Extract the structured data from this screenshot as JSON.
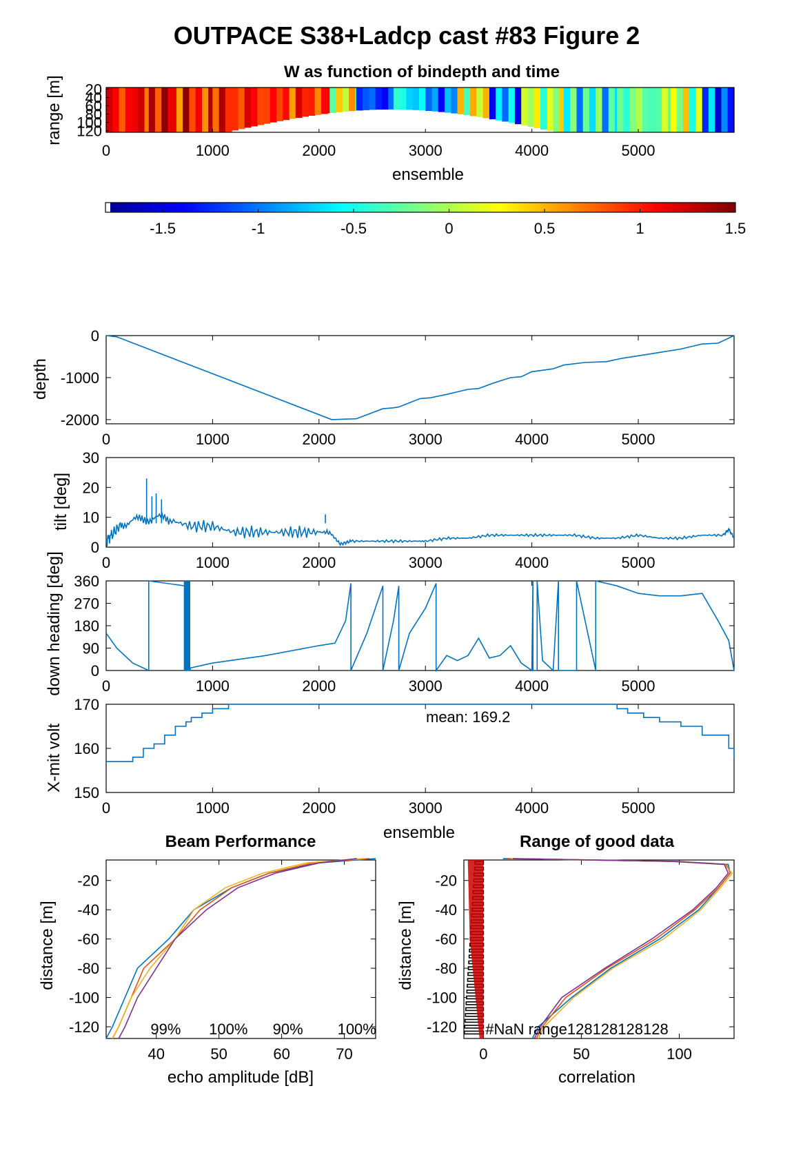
{
  "figure_title": "OUTPACE S38+Ladcp cast #83 Figure 2",
  "colors": {
    "line": "#0072bd",
    "beam1": "#0072bd",
    "beam2": "#d95319",
    "beam3": "#edb120",
    "beam4": "#7e2f8e",
    "nan_bars": "#cc0000",
    "colormap": "jet"
  },
  "chart_data": [
    {
      "id": "w_image",
      "type": "heatmap",
      "title": "W as function of bindepth and time",
      "xlabel": "ensemble",
      "ylabel": "range [m]",
      "xlim": [
        0,
        5900
      ],
      "xticks": [
        0,
        1000,
        2000,
        3000,
        4000,
        5000
      ],
      "ylim": [
        16,
        124
      ],
      "yticks": [
        20,
        40,
        60,
        80,
        100,
        120
      ],
      "ytick_labels": [
        "20",
        "40",
        "60",
        "80",
        "100",
        "120"
      ],
      "colorbar": {
        "clim": [
          -1.8,
          1.5
        ],
        "ticks": [
          -1.5,
          -1,
          -0.5,
          0,
          0.5,
          1,
          1.5
        ],
        "tick_labels": [
          "-1.5",
          "-1",
          "-0.5",
          "0",
          "0.5",
          "1",
          "1.5"
        ]
      },
      "segments": [
        {
          "x": [
            0,
            400
          ],
          "w": 1.05
        },
        {
          "x": [
            400,
            600
          ],
          "w": 1.2
        },
        {
          "x": [
            600,
            1000
          ],
          "w": 1.0
        },
        {
          "x": [
            1000,
            1600
          ],
          "w": 1.0
        },
        {
          "x": [
            1600,
            2100
          ],
          "w": 0.95
        },
        {
          "x": [
            2100,
            2350
          ],
          "w": 0.2
        },
        {
          "x": [
            2350,
            2700
          ],
          "w": -1.2
        },
        {
          "x": [
            2700,
            3000
          ],
          "w": -0.6
        },
        {
          "x": [
            3000,
            3300
          ],
          "w": -1.0
        },
        {
          "x": [
            3300,
            3600
          ],
          "w": 0.2
        },
        {
          "x": [
            3600,
            3900
          ],
          "w": -0.9
        },
        {
          "x": [
            3900,
            4300
          ],
          "w": 0.0
        },
        {
          "x": [
            4300,
            4800
          ],
          "w": -0.5
        },
        {
          "x": [
            4800,
            5300
          ],
          "w": -0.2
        },
        {
          "x": [
            5300,
            5600
          ],
          "w": 0.0
        },
        {
          "x": [
            5600,
            5900
          ],
          "w": -1.1
        }
      ]
    },
    {
      "id": "depth",
      "type": "line",
      "ylabel": "depth",
      "xlim": [
        0,
        5900
      ],
      "xticks": [
        0,
        1000,
        2000,
        3000,
        4000,
        5000
      ],
      "ylim": [
        -2100,
        0
      ],
      "yticks": [
        -2000,
        -1000,
        0
      ],
      "series": [
        {
          "x": [
            0,
            100,
            2120,
            2350,
            2600,
            2700,
            2750,
            2950,
            3050,
            3200,
            3400,
            3500,
            3650,
            3800,
            3900,
            4000,
            4200,
            4300,
            4500,
            4700,
            4850,
            5000,
            5200,
            5400,
            5600,
            5750,
            5900
          ],
          "y": [
            0,
            -30,
            -2000,
            -1980,
            -1740,
            -1720,
            -1700,
            -1500,
            -1480,
            -1400,
            -1280,
            -1260,
            -1120,
            -1000,
            -980,
            -860,
            -790,
            -700,
            -640,
            -620,
            -540,
            -480,
            -400,
            -320,
            -200,
            -180,
            0
          ]
        }
      ]
    },
    {
      "id": "tilt",
      "type": "line",
      "ylabel": "tilt [deg]",
      "xlim": [
        0,
        5900
      ],
      "xticks": [
        0,
        1000,
        2000,
        3000,
        4000,
        5000
      ],
      "ylim": [
        0,
        30
      ],
      "yticks": [
        0,
        10,
        20,
        30
      ],
      "series": [
        {
          "x": [
            0,
            50,
            150,
            300,
            450,
            600,
            800,
            1000,
            1200,
            1400,
            1600,
            1800,
            2000,
            2100,
            2200,
            2300,
            2500,
            2700,
            2900,
            3000,
            3200,
            3400,
            3600,
            3800,
            4000,
            4200,
            4400,
            4600,
            4800,
            5000,
            5200,
            5400,
            5600,
            5800,
            5850,
            5900
          ],
          "y": [
            2,
            4,
            8,
            9,
            10,
            9,
            7,
            7,
            5,
            5,
            5,
            5,
            5,
            5,
            1,
            2,
            2,
            2,
            2,
            2,
            3,
            3,
            4,
            4,
            4,
            4,
            4,
            3,
            3,
            4,
            3,
            3,
            4,
            4,
            6,
            3
          ],
          "spikes_x": [
            380,
            430,
            470,
            520,
            2060
          ],
          "spikes_y": [
            23,
            17,
            18,
            16,
            11
          ]
        }
      ]
    },
    {
      "id": "heading",
      "type": "line",
      "ylabel": "down heading [deg]",
      "xlim": [
        0,
        5900
      ],
      "xticks": [
        0,
        1000,
        2000,
        3000,
        4000,
        5000
      ],
      "ylim": [
        0,
        360
      ],
      "yticks": [
        0,
        90,
        180,
        270,
        360
      ],
      "series": [
        {
          "x": [
            0,
            100,
            250,
            400,
            400,
            740,
            740,
            790,
            790,
            1000,
            1500,
            2000,
            2150,
            2250,
            2300,
            2300,
            2450,
            2600,
            2600,
            2700,
            2750,
            2750,
            2850,
            3000,
            3100,
            3100,
            3200,
            3300,
            3400,
            3500,
            3600,
            3700,
            3800,
            3900,
            4000,
            4010,
            4010,
            4050,
            4050,
            4100,
            4200,
            4250,
            4250,
            4420,
            4420,
            4600,
            4600,
            4800,
            5000,
            5200,
            5400,
            5600,
            5750,
            5850,
            5900
          ],
          "y": [
            150,
            90,
            30,
            0,
            360,
            340,
            0,
            0,
            10,
            30,
            60,
            100,
            110,
            200,
            350,
            0,
            150,
            340,
            0,
            200,
            340,
            0,
            150,
            250,
            350,
            0,
            60,
            40,
            60,
            130,
            50,
            60,
            100,
            30,
            0,
            360,
            0,
            0,
            360,
            40,
            0,
            360,
            0,
            0,
            360,
            0,
            360,
            340,
            310,
            300,
            300,
            310,
            200,
            120,
            0
          ]
        }
      ]
    },
    {
      "id": "xmit",
      "type": "line",
      "ylabel": "X-mit volt",
      "xlabel": "ensemble",
      "xlim": [
        0,
        5900
      ],
      "xticks": [
        0,
        1000,
        2000,
        3000,
        4000,
        5000
      ],
      "ylim": [
        150,
        170
      ],
      "yticks": [
        150,
        160,
        170
      ],
      "annotation": "mean: 169.2",
      "series": [
        {
          "x": [
            0,
            100,
            250,
            350,
            450,
            550,
            650,
            750,
            800,
            900,
            1000,
            1150,
            1200,
            4600,
            4800,
            4900,
            5050,
            5200,
            5400,
            5600,
            5850,
            5900
          ],
          "y": [
            157,
            157,
            158,
            160,
            161,
            163,
            165,
            166,
            167,
            168,
            169,
            170,
            170,
            170,
            169,
            168,
            167,
            166,
            165,
            163,
            160,
            158
          ]
        }
      ]
    },
    {
      "id": "beam",
      "type": "line",
      "title": "Beam Performance",
      "xlabel": "echo amplitude [dB]",
      "ylabel": "distance [m]",
      "xlim": [
        32,
        75
      ],
      "xticks": [
        40,
        50,
        60,
        70
      ],
      "ylim": [
        -128,
        -6
      ],
      "yticks": [
        -120,
        -100,
        -80,
        -60,
        -40,
        -20
      ],
      "percent_labels": [
        {
          "text": "99%",
          "x": 41.5
        },
        {
          "text": "100%",
          "x": 51.5
        },
        {
          "text": "90%",
          "x": 61
        },
        {
          "text": "100%",
          "x": 72
        }
      ],
      "series": [
        {
          "name": "",
          "y": [
            -5,
            -8,
            -15,
            -25,
            -40,
            -60,
            -80,
            -100,
            -120,
            -128
          ],
          "x": [
            75,
            66,
            58,
            52,
            46,
            42,
            37,
            35,
            33,
            32
          ]
        },
        {
          "name": "",
          "y": [
            -5,
            -8,
            -15,
            -25,
            -40,
            -60,
            -80,
            -100,
            -120,
            -128
          ],
          "x": [
            74,
            65,
            58,
            52,
            47,
            43,
            38,
            36,
            34,
            33
          ]
        },
        {
          "name": "",
          "y": [
            -5,
            -8,
            -15,
            -25,
            -40,
            -60,
            -80,
            -100,
            -120,
            -128
          ],
          "x": [
            73,
            64,
            57,
            51,
            46,
            43,
            39,
            36,
            34,
            33
          ]
        },
        {
          "name": "",
          "y": [
            -5,
            -8,
            -15,
            -25,
            -40,
            -60,
            -80,
            -100,
            -120,
            -128
          ],
          "x": [
            72,
            66,
            59,
            53,
            48,
            43,
            40,
            37,
            35,
            34
          ]
        }
      ]
    },
    {
      "id": "range",
      "type": "line",
      "title": "Range of good data",
      "xlabel": "correlation",
      "ylabel": "distance [m]",
      "xlim": [
        -10,
        128
      ],
      "xticks": [
        0,
        50,
        100
      ],
      "ylim": [
        -128,
        -6
      ],
      "yticks": [
        -120,
        -100,
        -80,
        -60,
        -40,
        -20
      ],
      "annotation": "#NaN range128128128128",
      "series": [
        {
          "name": "",
          "y": [
            -5,
            -7,
            -9,
            -15,
            -25,
            -40,
            -60,
            -80,
            -100,
            -120,
            -128
          ],
          "x": [
            10,
            100,
            125,
            126,
            120,
            110,
            90,
            65,
            45,
            28,
            25
          ]
        },
        {
          "name": "",
          "y": [
            -5,
            -7,
            -9,
            -15,
            -25,
            -40,
            -60,
            -80,
            -100,
            -120,
            -128
          ],
          "x": [
            12,
            98,
            124,
            126,
            120,
            108,
            88,
            63,
            42,
            30,
            27
          ]
        },
        {
          "name": "",
          "y": [
            -5,
            -7,
            -9,
            -15,
            -25,
            -40,
            -60,
            -80,
            -100,
            -120,
            -128
          ],
          "x": [
            14,
            97,
            123,
            127,
            121,
            111,
            92,
            66,
            46,
            31,
            28
          ]
        },
        {
          "name": "",
          "y": [
            -5,
            -7,
            -9,
            -15,
            -25,
            -40,
            -60,
            -80,
            -100,
            -120,
            -128
          ],
          "x": [
            15,
            96,
            123,
            125,
            119,
            107,
            86,
            62,
            40,
            29,
            26
          ]
        }
      ]
    }
  ]
}
